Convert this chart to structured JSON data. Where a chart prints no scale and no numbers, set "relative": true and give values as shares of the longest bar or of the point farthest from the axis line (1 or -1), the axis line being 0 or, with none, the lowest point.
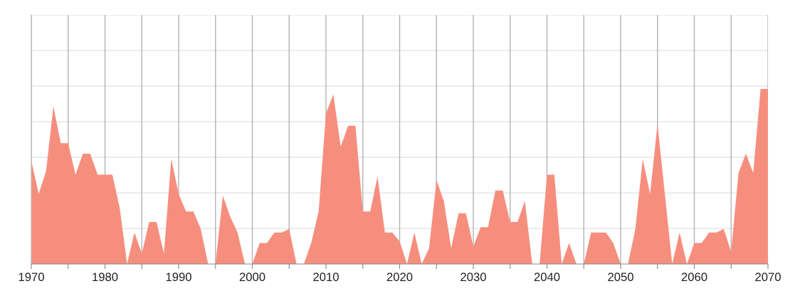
{
  "chart_data": {
    "type": "area",
    "relative": true,
    "tick_labels": "x",
    "grid": true,
    "legend": false,
    "x": [
      1970,
      1971,
      1972,
      1973,
      1974,
      1975,
      1976,
      1977,
      1978,
      1979,
      1980,
      1981,
      1982,
      1983,
      1984,
      1985,
      1986,
      1987,
      1988,
      1989,
      1990,
      1991,
      1992,
      1993,
      1994,
      1995,
      1996,
      1997,
      1998,
      1999,
      2000,
      2001,
      2002,
      2003,
      2004,
      2005,
      2006,
      2007,
      2008,
      2009,
      2010,
      2011,
      2012,
      2013,
      2014,
      2015,
      2016,
      2017,
      2018,
      2019,
      2020,
      2021,
      2022,
      2023,
      2024,
      2025,
      2026,
      2027,
      2028,
      2029,
      2030,
      2031,
      2032,
      2033,
      2034,
      2035,
      2036,
      2037,
      2038,
      2039,
      2040,
      2041,
      2042,
      2043,
      2044,
      2045,
      2046,
      2047,
      2048,
      2049,
      2050,
      2051,
      2052,
      2053,
      2054,
      2055,
      2056,
      2057,
      2058,
      2059,
      2060,
      2061,
      2062,
      2063,
      2064,
      2065,
      2066,
      2067,
      2068,
      2069,
      2070
    ],
    "series": [
      {
        "color": "#f68e7e",
        "values": [
          0.59,
          0.4,
          0.53,
          0.9,
          0.69,
          0.69,
          0.51,
          0.63,
          0.63,
          0.51,
          0.51,
          0.51,
          0.32,
          0,
          0.18,
          0.06,
          0.24,
          0.24,
          0.06,
          0.6,
          0.4,
          0.3,
          0.3,
          0.2,
          0,
          0,
          0.39,
          0.27,
          0.18,
          0,
          0,
          0.12,
          0.12,
          0.18,
          0.18,
          0.2,
          0,
          0,
          0.12,
          0.3,
          0.86,
          0.97,
          0.67,
          0.79,
          0.79,
          0.3,
          0.3,
          0.5,
          0.18,
          0.18,
          0.13,
          0,
          0.18,
          0,
          0.09,
          0.48,
          0.36,
          0.09,
          0.29,
          0.29,
          0.1,
          0.21,
          0.21,
          0.42,
          0.42,
          0.24,
          0.24,
          0.36,
          0,
          0,
          0.51,
          0.51,
          0,
          0.12,
          0,
          0,
          0.18,
          0.18,
          0.18,
          0.12,
          0,
          0,
          0.2,
          0.6,
          0.4,
          0.8,
          0.4,
          0,
          0.18,
          0,
          0.12,
          0.12,
          0.18,
          0.18,
          0.2,
          0.07,
          0.52,
          0.63,
          0.52,
          1,
          1
        ]
      }
    ],
    "xlim": [
      1970,
      2070
    ],
    "xticks": [
      1970,
      {
        "value": 1975,
        "label": null
      },
      1980,
      {
        "value": 1985,
        "label": null
      },
      1990,
      {
        "value": 1995,
        "label": null
      },
      2000,
      {
        "value": 2005,
        "label": null
      },
      2010,
      {
        "value": 2015,
        "label": null
      },
      2020,
      {
        "value": 2025,
        "label": null
      },
      2030,
      {
        "value": 2035,
        "label": null
      },
      2040,
      {
        "value": 2045,
        "label": null
      },
      2050,
      {
        "value": 2055,
        "label": null
      },
      2060,
      {
        "value": 2065,
        "label": null
      },
      2070
    ]
  }
}
